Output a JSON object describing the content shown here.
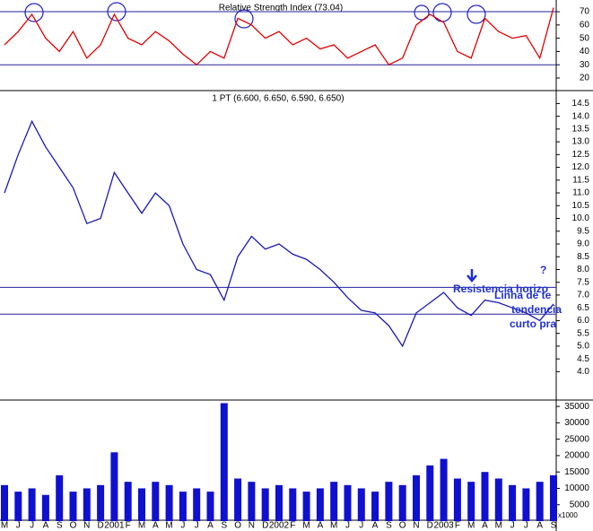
{
  "chart_data": [
    {
      "type": "line",
      "title": "Relative Strength Index (73.04)",
      "color": "#e00000",
      "values": [
        45,
        55,
        68,
        50,
        40,
        55,
        35,
        45,
        68,
        50,
        45,
        55,
        48,
        38,
        30,
        40,
        35,
        65,
        60,
        50,
        55,
        45,
        50,
        42,
        45,
        35,
        40,
        45,
        30,
        35,
        60,
        68,
        62,
        40,
        35,
        65,
        55,
        50,
        52,
        35,
        73
      ],
      "ylim": [
        11.2,
        76.8
      ],
      "yticks": [
        20,
        30,
        40,
        50,
        60,
        70
      ],
      "hlines": [
        70,
        30
      ]
    },
    {
      "type": "line",
      "title": "1 PT (6.600, 6.650, 6.590, 6.650)",
      "color": "#1a1ab0",
      "values": [
        11.0,
        12.5,
        13.8,
        12.8,
        12.0,
        11.2,
        9.8,
        10.0,
        11.8,
        11.0,
        10.2,
        11.0,
        10.5,
        9.0,
        8.0,
        7.8,
        6.8,
        8.5,
        9.3,
        8.8,
        9.0,
        8.6,
        8.4,
        8.0,
        7.5,
        6.9,
        6.4,
        6.3,
        5.8,
        5.0,
        6.3,
        6.7,
        7.1,
        6.5,
        6.2,
        6.8,
        6.7,
        6.5,
        6.3,
        6.0,
        6.65
      ],
      "ylim": [
        3.1,
        14.9
      ],
      "yticks": [
        {
          "value": 4,
          "label": "4.0"
        },
        {
          "value": 4.5,
          "label": "4.5"
        },
        {
          "value": 5,
          "label": "5.0"
        },
        {
          "value": 5.5,
          "label": "5.5"
        },
        {
          "value": 6,
          "label": "6.0"
        },
        {
          "value": 6.5,
          "label": "6.5"
        },
        {
          "value": 7,
          "label": "7.0"
        },
        {
          "value": 7.5,
          "label": "7.5"
        },
        {
          "value": 8,
          "label": "8.0"
        },
        {
          "value": 8.5,
          "label": "8.5"
        },
        {
          "value": 9,
          "label": "9.0"
        },
        {
          "value": 9.5,
          "label": "9.5"
        },
        {
          "value": 10,
          "label": "10.0"
        },
        {
          "value": 10.5,
          "label": "10.5"
        },
        {
          "value": 11,
          "label": "11.0"
        },
        {
          "value": 11.5,
          "label": "11.5"
        },
        {
          "value": 12,
          "label": "12.0"
        },
        {
          "value": 12.5,
          "label": "12.5"
        },
        {
          "value": 13,
          "label": "13.0"
        },
        {
          "value": 13.5,
          "label": "13.5"
        },
        {
          "value": 14,
          "label": "14.0"
        },
        {
          "value": 14.5,
          "label": "14.5"
        }
      ],
      "hlines": [
        7.3,
        6.25
      ],
      "annotations": [
        "Resistencia horizo",
        "Linha de te",
        "tendencia",
        "curto pra",
        "?"
      ]
    },
    {
      "type": "bar",
      "color": "#1010d0",
      "unit": "x1000",
      "categories": [
        "M",
        "J",
        "J",
        "A",
        "S",
        "O",
        "N",
        "D",
        "2001",
        "F",
        "M",
        "A",
        "M",
        "J",
        "J",
        "A",
        "S",
        "O",
        "N",
        "D",
        "2002",
        "F",
        "M",
        "A",
        "M",
        "J",
        "J",
        "A",
        "S",
        "O",
        "N",
        "D",
        "2003",
        "F",
        "M",
        "A",
        "M",
        "J",
        "J",
        "A",
        "S"
      ],
      "values": [
        11000,
        9000,
        10000,
        8000,
        14000,
        9000,
        10000,
        11000,
        21000,
        12000,
        10000,
        12000,
        11000,
        9000,
        10000,
        9000,
        36000,
        13000,
        12000,
        10000,
        11000,
        10000,
        9000,
        10000,
        12000,
        11000,
        10000,
        9000,
        12000,
        11000,
        14000,
        17000,
        19000,
        13000,
        12000,
        15000,
        13000,
        11000,
        10000,
        12000,
        14000
      ],
      "ylim": [
        0,
        36400
      ],
      "yticks": [
        5000,
        10000,
        15000,
        20000,
        25000,
        30000,
        35000
      ]
    }
  ]
}
